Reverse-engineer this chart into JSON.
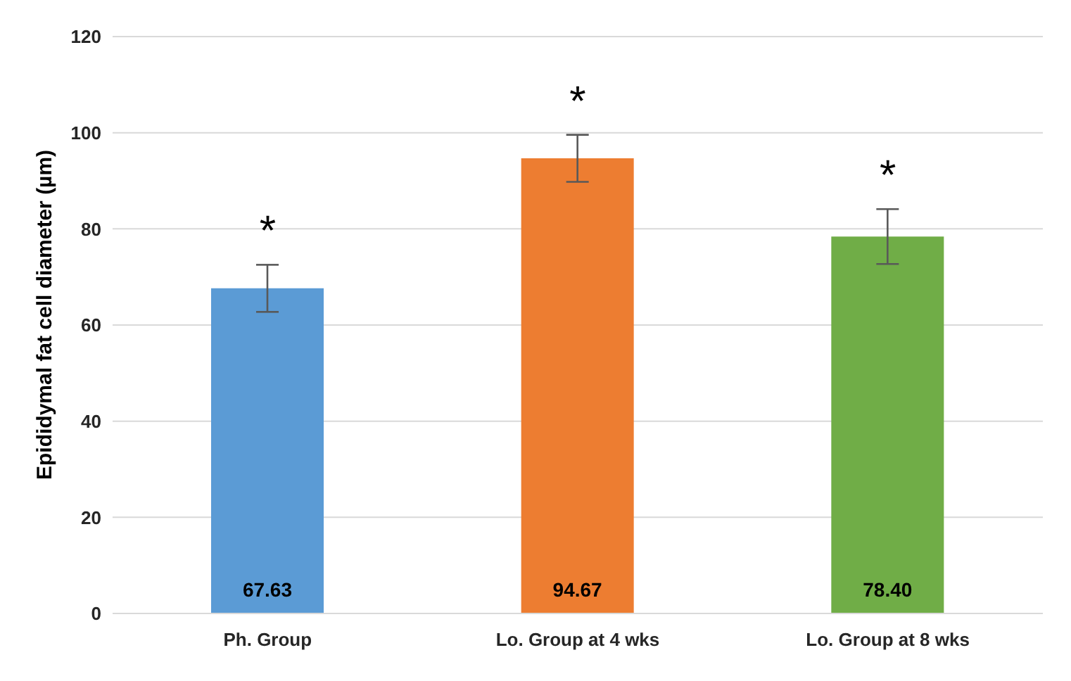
{
  "chart_data": {
    "type": "bar",
    "ylabel": "Epididymal fat cell diameter (µm)",
    "categories": [
      "Ph. Group",
      "Lo. Group at 4 wks",
      "Lo. Group at 8 wks"
    ],
    "values": [
      67.63,
      94.67,
      78.4
    ],
    "colors": [
      "#5b9bd5",
      "#ed7d31",
      "#70ad47"
    ],
    "errors": [
      4.9,
      4.9,
      5.7
    ],
    "value_labels": [
      "67.63",
      "94.67",
      "78.40"
    ],
    "ylim": [
      0,
      120
    ],
    "yticks": [
      0,
      20,
      40,
      60,
      80,
      100,
      120
    ],
    "grid": "y",
    "annotations": [
      "*",
      "*",
      "*"
    ]
  }
}
